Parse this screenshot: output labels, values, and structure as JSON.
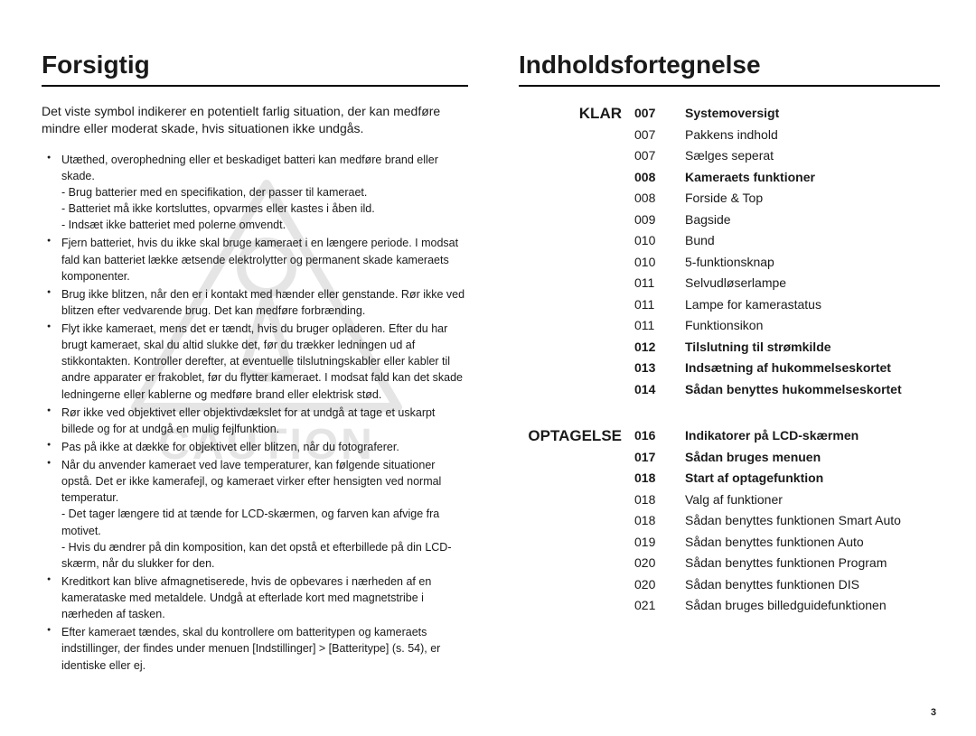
{
  "left": {
    "heading": "Forsigtig",
    "intro": "Det viste symbol indikerer en potentielt farlig situation, der kan medføre mindre eller moderat skade, hvis situationen ikke undgås.",
    "caution_watermark": "CAUTION",
    "bullets": [
      {
        "text": "Utæthed, overophedning eller et beskadiget batteri kan medføre brand eller skade.",
        "subs": [
          "Brug batterier med en specifikation, der passer til kameraet.",
          "Batteriet må ikke kortsluttes, opvarmes eller kastes i åben ild.",
          "Indsæt ikke batteriet med polerne omvendt."
        ]
      },
      {
        "text": "Fjern batteriet, hvis du ikke skal bruge kameraet i en længere periode. I modsat fald kan batteriet lække ætsende elektrolytter og permanent skade kameraets komponenter.",
        "subs": []
      },
      {
        "text": "Brug ikke blitzen, når den er i kontakt med hænder eller genstande. Rør ikke ved blitzen efter vedvarende brug. Det kan medføre forbrænding.",
        "subs": []
      },
      {
        "text": "Flyt ikke kameraet, mens det er tændt, hvis du bruger opladeren. Efter du har brugt kameraet, skal du altid slukke det, før du trækker ledningen ud af stikkontakten. Kontroller derefter, at eventuelle tilslutningskabler eller kabler til andre apparater er frakoblet, før du flytter kameraet. I modsat fald kan det skade ledningerne eller kablerne og medføre brand eller elektrisk stød.",
        "subs": []
      },
      {
        "text": "Rør ikke ved objektivet eller objektivdækslet for at undgå at tage et uskarpt billede og for at undgå en mulig fejlfunktion.",
        "subs": []
      },
      {
        "text": "Pas på ikke at dække for objektivet eller blitzen, når du fotograferer.",
        "subs": []
      },
      {
        "text": "Når du anvender kameraet ved lave temperaturer, kan følgende situationer opstå. Det er ikke kamerafejl, og kameraet virker efter hensigten ved normal temperatur.",
        "subs": [
          "Det tager længere tid at tænde for LCD-skærmen, og farven kan afvige fra motivet.",
          "Hvis du ændrer på din komposition, kan det opstå et efterbillede på din LCD-skærm, når du slukker for den."
        ]
      },
      {
        "text": "Kreditkort kan blive afmagnetiserede, hvis de opbevares i nærheden af en kamerataske med metaldele. Undgå at efterlade kort med magnetstribe i nærheden af tasken.",
        "subs": []
      },
      {
        "text": "Efter kameraet tændes, skal du kontrollere om batteritypen og kameraets indstillinger, der findes under menuen [Indstillinger] > [Batteritype] (s. 54), er identiske eller ej.",
        "subs": []
      }
    ]
  },
  "right": {
    "heading": "Indholdsfortegnelse",
    "sections": [
      {
        "label": "KLAR",
        "items": [
          {
            "page": "007",
            "title": "Systemoversigt",
            "bold": true
          },
          {
            "page": "007",
            "title": "Pakkens indhold",
            "bold": false
          },
          {
            "page": "007",
            "title": "Sælges seperat",
            "bold": false
          },
          {
            "page": "008",
            "title": "Kameraets funktioner",
            "bold": true
          },
          {
            "page": "008",
            "title": "Forside & Top",
            "bold": false
          },
          {
            "page": "009",
            "title": "Bagside",
            "bold": false
          },
          {
            "page": "010",
            "title": "Bund",
            "bold": false
          },
          {
            "page": "010",
            "title": "5-funktionsknap",
            "bold": false
          },
          {
            "page": "011",
            "title": "Selvudløserlampe",
            "bold": false
          },
          {
            "page": "011",
            "title": "Lampe for kamerastatus",
            "bold": false
          },
          {
            "page": "011",
            "title": "Funktionsikon",
            "bold": false
          },
          {
            "page": "012",
            "title": "Tilslutning til strømkilde",
            "bold": true
          },
          {
            "page": "013",
            "title": "Indsætning af hukommelseskortet",
            "bold": true
          },
          {
            "page": "014",
            "title": "Sådan benyttes hukommelseskortet",
            "bold": true
          }
        ]
      },
      {
        "label": "OPTAGELSE",
        "items": [
          {
            "page": "016",
            "title": "Indikatorer på LCD-skærmen",
            "bold": true
          },
          {
            "page": "017",
            "title": "Sådan bruges menuen",
            "bold": true
          },
          {
            "page": "018",
            "title": "Start af optagefunktion",
            "bold": true
          },
          {
            "page": "018",
            "title": "Valg af funktioner",
            "bold": false
          },
          {
            "page": "018",
            "title": "Sådan benyttes funktionen Smart Auto",
            "bold": false
          },
          {
            "page": "019",
            "title": "Sådan benyttes funktionen Auto",
            "bold": false
          },
          {
            "page": "020",
            "title": "Sådan benyttes funktionen Program",
            "bold": false
          },
          {
            "page": "020",
            "title": "Sådan benyttes funktionen DIS",
            "bold": false
          },
          {
            "page": "021",
            "title": "Sådan bruges billedguidefunktionen",
            "bold": false
          }
        ]
      }
    ]
  },
  "page_number": "3",
  "colors": {
    "text": "#1a1a1a",
    "rule": "#000000",
    "watermark": "#b0b0b0",
    "background": "#ffffff"
  }
}
